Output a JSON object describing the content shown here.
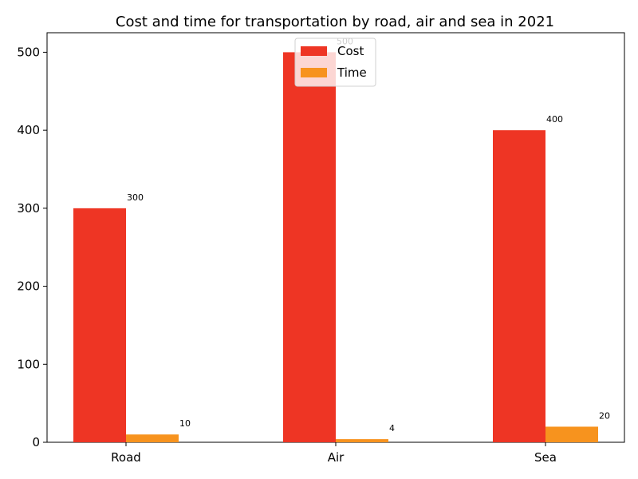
{
  "chart_data": {
    "type": "bar",
    "title": "Cost and time for transportation by road, air and sea in 2021",
    "categories": [
      "Road",
      "Air",
      "Sea"
    ],
    "series": [
      {
        "name": "Cost",
        "values": [
          300,
          500,
          400
        ],
        "color": "#ee3524"
      },
      {
        "name": "Time",
        "values": [
          10,
          4,
          20
        ],
        "color": "#f7931e"
      }
    ],
    "xlabel": "",
    "ylabel": "",
    "ylim": [
      0,
      525
    ],
    "yticks": [
      0,
      100,
      200,
      300,
      400,
      500
    ],
    "grid": false,
    "legend_position": "top-center"
  }
}
